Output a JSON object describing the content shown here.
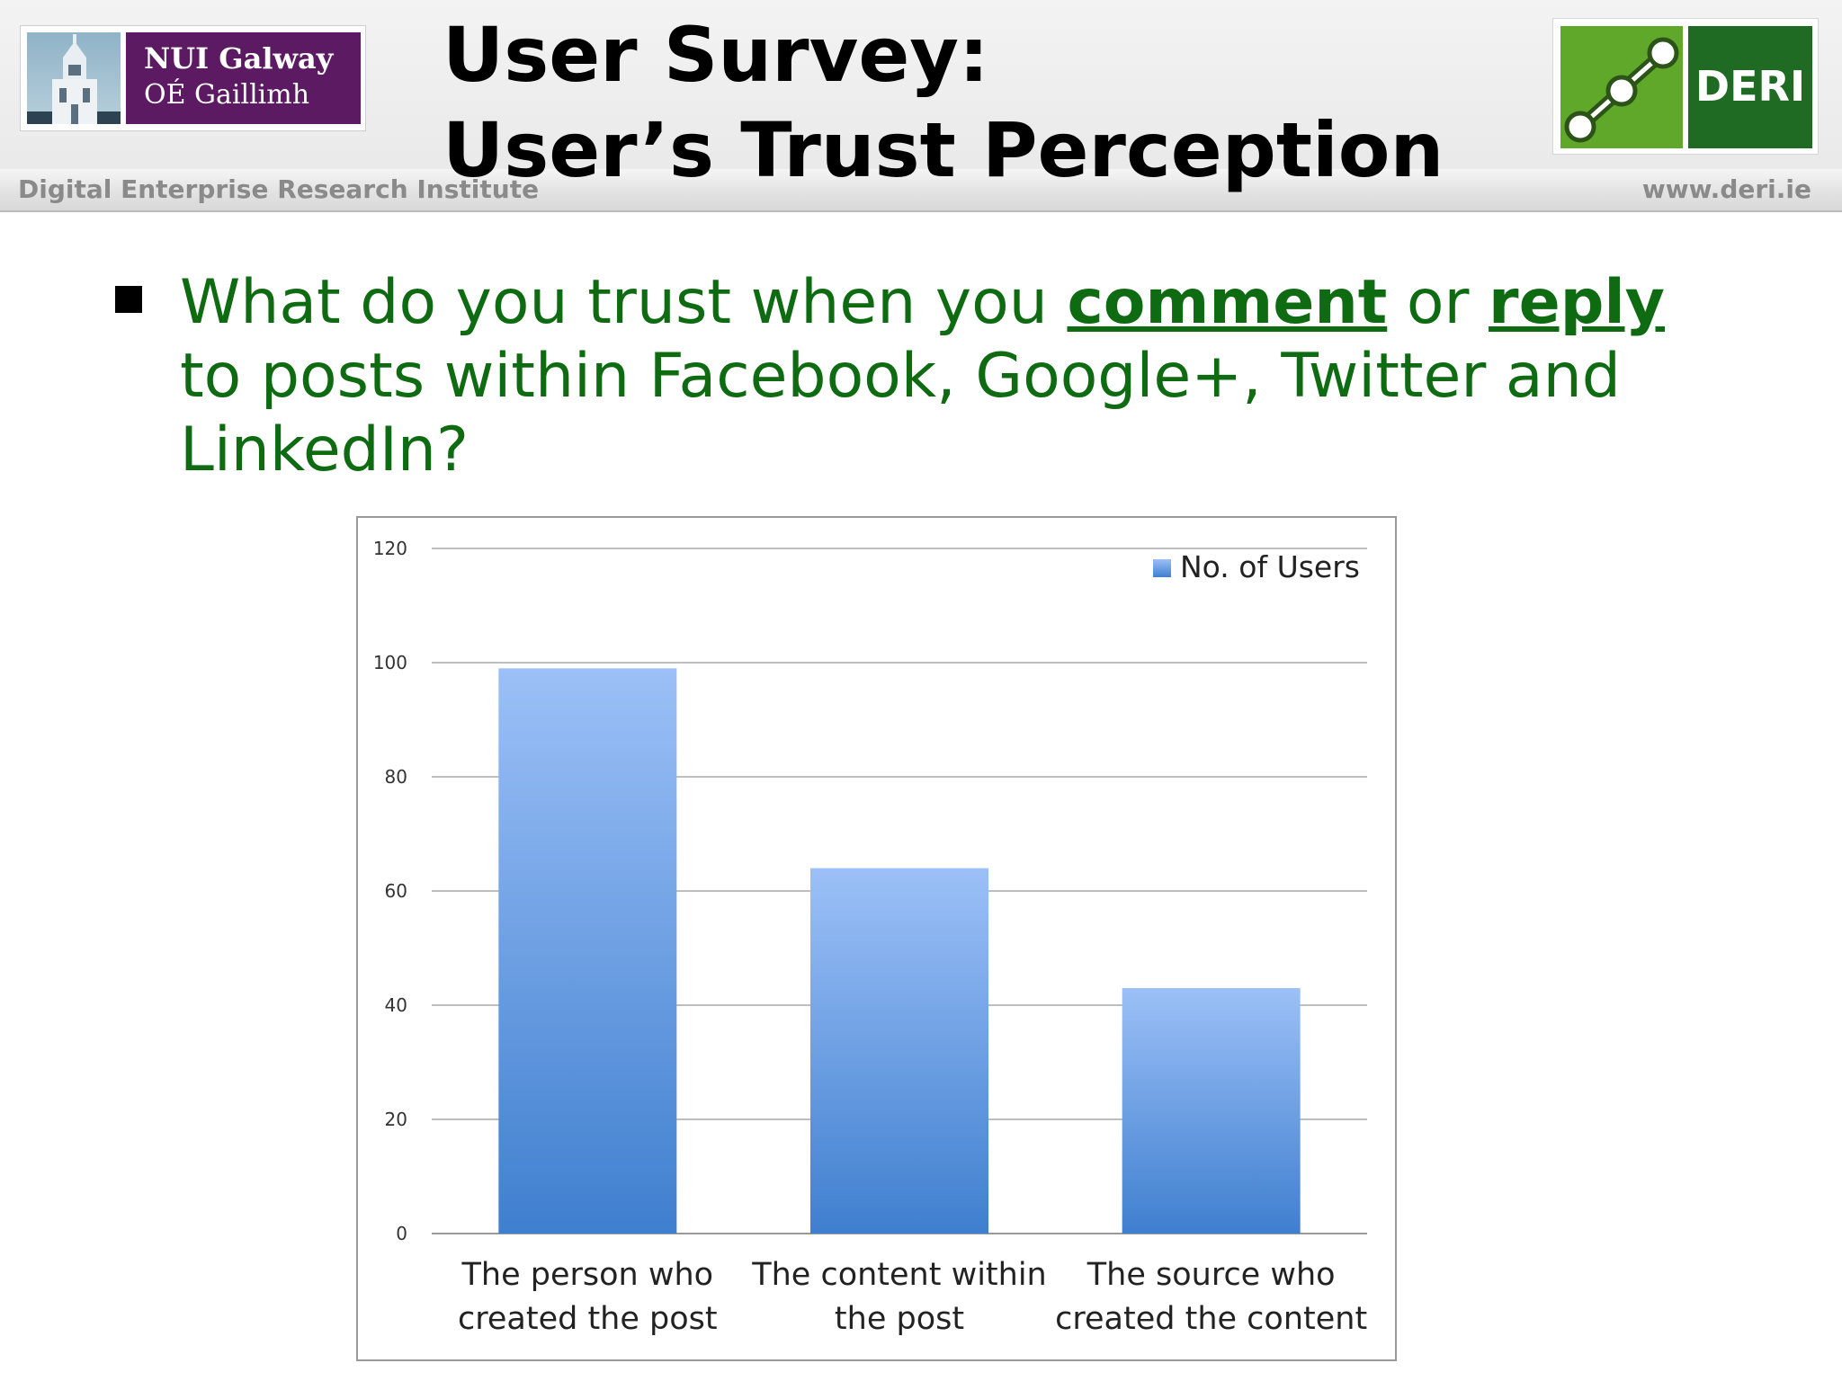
{
  "header": {
    "title_line1": "User Survey:",
    "title_line2": "User’s Trust Perception",
    "institute": "Digital Enterprise Research Institute",
    "website": "www.deri.ie"
  },
  "logos": {
    "nui_line1": "NUI Galway",
    "nui_line2": "OÉ Gaillimh",
    "deri": "DERI"
  },
  "question": {
    "part1": "What do you trust when you ",
    "emph1": "comment",
    "part2": " or ",
    "emph2": "reply",
    "part3": " to posts within Facebook, Google+, Twitter and LinkedIn?"
  },
  "colors": {
    "question_text": "#0e6b12",
    "bar_top": "#9cc0f7",
    "bar_bottom": "#3f7fcf"
  },
  "chart_data": {
    "type": "bar",
    "categories": [
      [
        "The person who",
        "created the post"
      ],
      [
        "The content within",
        "the post"
      ],
      [
        "The source who",
        "created the content"
      ]
    ],
    "series": [
      {
        "name": "No. of Users",
        "values": [
          99,
          64,
          43
        ]
      }
    ],
    "ylim": [
      0,
      120
    ],
    "yticks": [
      0,
      20,
      40,
      60,
      80,
      100,
      120
    ],
    "grid": true,
    "legend": "top-right"
  }
}
